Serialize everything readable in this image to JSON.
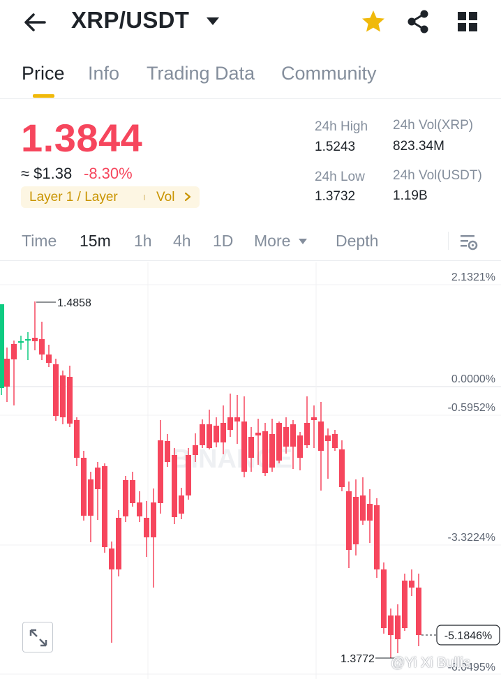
{
  "header": {
    "pair": "XRP/USDT",
    "icons": {
      "back": "arrow-left-icon",
      "caret": "caret-down-icon",
      "favorite": "star-icon",
      "share": "share-icon",
      "menu": "grid-icon"
    },
    "star_color": "#f0b90b"
  },
  "tabs": [
    {
      "label": "Price",
      "active": true
    },
    {
      "label": "Info",
      "active": false
    },
    {
      "label": "Trading Data",
      "active": false
    },
    {
      "label": "Community",
      "active": false
    }
  ],
  "price": {
    "last": "1.3844",
    "usd": "≈ $1.38",
    "change": "-8.30%",
    "tag": "Layer 1 / Layer",
    "tag_vol": "Vol",
    "down_color": "#f6465d",
    "up_color": "#0ecb81"
  },
  "stats": {
    "high_label": "24h High",
    "high_value": "1.5243",
    "low_label": "24h Low",
    "low_value": "1.3732",
    "vol_base_label": "24h Vol(XRP)",
    "vol_base_value": "823.34M",
    "vol_quote_label": "24h Vol(USDT)",
    "vol_quote_value": "1.19B"
  },
  "timeframes": [
    {
      "label": "Time",
      "active": false
    },
    {
      "label": "15m",
      "active": true
    },
    {
      "label": "1h",
      "active": false
    },
    {
      "label": "4h",
      "active": false
    },
    {
      "label": "1D",
      "active": false
    },
    {
      "label": "More",
      "active": false
    },
    {
      "label": "Depth",
      "active": false
    }
  ],
  "chart": {
    "axis_labels": [
      "2.1321%",
      "0.0000%",
      "-0.5952%",
      "-3.3224%",
      "-6.0495%"
    ],
    "current_label": "-5.1846%",
    "max_marker": "1.4858",
    "min_marker": "1.3772",
    "watermark": "BINANCE",
    "overlay_text": "@Yi Xi Bullis"
  }
}
